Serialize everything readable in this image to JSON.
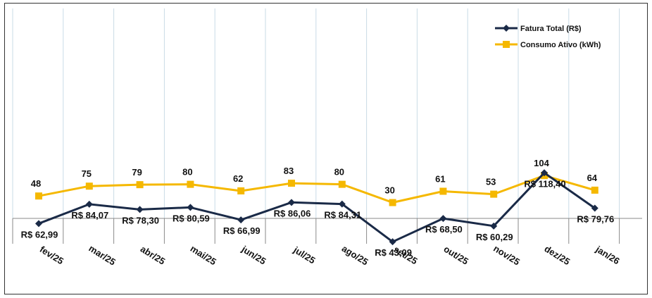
{
  "chart_data": {
    "type": "line",
    "categories": [
      "fev/25",
      "mar/25",
      "abr/25",
      "mai/25",
      "jun/25",
      "jul/25",
      "ago/25",
      "set/25",
      "out/25",
      "nov/25",
      "dez/25",
      "jan/26"
    ],
    "series": [
      {
        "name": "Fatura Total (R$)",
        "values": [
          62.99,
          84.07,
          78.3,
          80.59,
          66.99,
          86.06,
          84.31,
          43.09,
          68.5,
          60.29,
          118.4,
          79.76
        ],
        "labels": [
          "R$ 62,99",
          "R$ 84,07",
          "R$ 78,30",
          "R$ 80,59",
          "R$ 66,99",
          "R$ 86,06",
          "R$ 84,31",
          "R$ 43,09",
          "R$ 68,50",
          "R$ 60,29",
          "R$ 118,40",
          "R$ 79,76"
        ],
        "color": "#1a2a47",
        "marker": "diamond"
      },
      {
        "name": "Consumo Ativo (kWh)",
        "values": [
          48,
          75,
          79,
          80,
          62,
          83,
          80,
          30,
          61,
          53,
          104,
          64
        ],
        "labels": [
          "48",
          "75",
          "79",
          "80",
          "62",
          "83",
          "80",
          "30",
          "61",
          "53",
          "104",
          "64"
        ],
        "color": "#f5b800",
        "marker": "square"
      }
    ],
    "title": "",
    "xlabel": "",
    "ylabel": "",
    "grid": "vertical",
    "legend": "top-right"
  }
}
